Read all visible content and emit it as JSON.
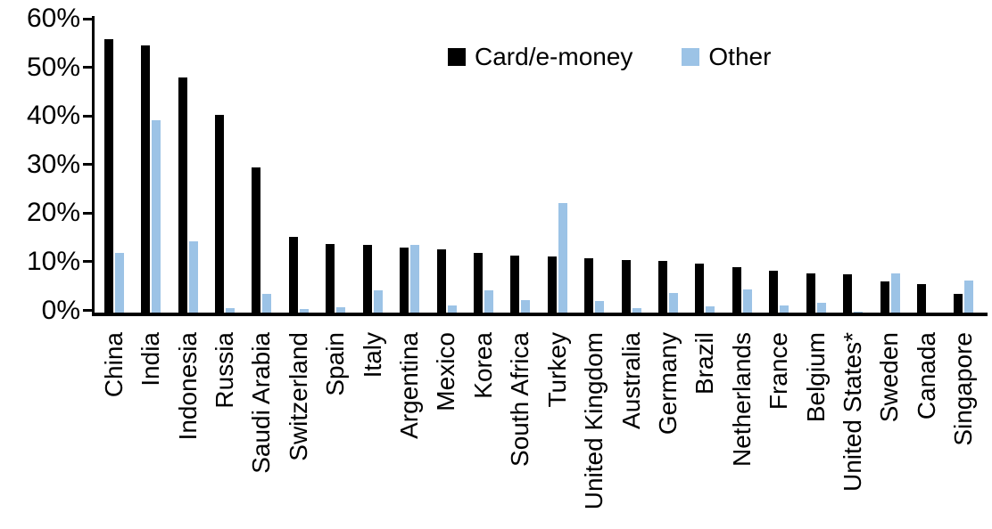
{
  "chart_data": {
    "type": "bar",
    "title": "",
    "xlabel": "",
    "ylabel": "",
    "ylim": [
      0,
      60
    ],
    "grid": false,
    "legend_position": "top-center",
    "yticks": [
      "0%",
      "10%",
      "20%",
      "30%",
      "40%",
      "50%",
      "60%"
    ],
    "categories": [
      "China",
      "India",
      "Indonesia",
      "Russia",
      "Saudi Arabia",
      "Switzerland",
      "Spain",
      "Italy",
      "Argentina",
      "Mexico",
      "Korea",
      "South Africa",
      "Turkey",
      "United Kingdom",
      "Australia",
      "Germany",
      "Brazil",
      "Netherlands",
      "France",
      "Belgium",
      "United States*",
      "Sweden",
      "Canada",
      "Singapore"
    ],
    "series": [
      {
        "name": "Card/e-money",
        "color": "#000000",
        "values": [
          56.2,
          55.0,
          48.3,
          40.6,
          29.8,
          15.5,
          14.2,
          14.0,
          13.3,
          13.0,
          12.2,
          11.7,
          11.6,
          11.2,
          10.9,
          10.7,
          10.0,
          9.3,
          8.7,
          8.1,
          7.9,
          6.5,
          5.9,
          3.9
        ]
      },
      {
        "name": "Other",
        "color": "#9CC3E6",
        "values": [
          12.2,
          39.6,
          14.6,
          1.0,
          3.9,
          0.8,
          1.1,
          4.6,
          13.9,
          1.4,
          4.6,
          2.5,
          22.6,
          2.3,
          1.0,
          4.0,
          1.2,
          4.8,
          1.5,
          2.1,
          0.2,
          8.1,
          0,
          6.6
        ]
      }
    ]
  }
}
